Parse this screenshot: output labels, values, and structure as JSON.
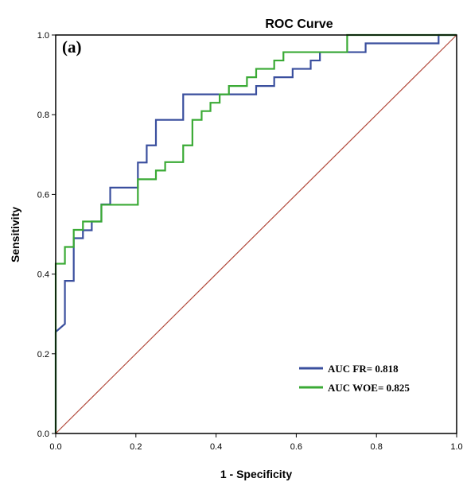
{
  "chart_data": {
    "type": "line",
    "title": "ROC Curve",
    "panel_label": "(a)",
    "xlabel": "1 - Specificity",
    "ylabel": "Sensitivity",
    "xlim": [
      0,
      1
    ],
    "ylim": [
      0,
      1
    ],
    "x_ticks": [
      "0.0",
      "0.2",
      "0.4",
      "0.6",
      "0.8",
      "1.0"
    ],
    "y_ticks": [
      "0.0",
      "0.2",
      "0.4",
      "0.6",
      "0.8",
      "1.0"
    ],
    "grid": false,
    "legend_position": "bottom-right",
    "series": [
      {
        "name": "AUC FR= 0.818",
        "color": "#3a4f9e",
        "points": [
          [
            0,
            0
          ],
          [
            0,
            0.255
          ],
          [
            0.023,
            0.275
          ],
          [
            0.023,
            0.383
          ],
          [
            0.045,
            0.383
          ],
          [
            0.045,
            0.49
          ],
          [
            0.068,
            0.49
          ],
          [
            0.068,
            0.51
          ],
          [
            0.09,
            0.51
          ],
          [
            0.09,
            0.532
          ],
          [
            0.114,
            0.532
          ],
          [
            0.114,
            0.575
          ],
          [
            0.136,
            0.575
          ],
          [
            0.136,
            0.617
          ],
          [
            0.205,
            0.617
          ],
          [
            0.205,
            0.68
          ],
          [
            0.227,
            0.68
          ],
          [
            0.227,
            0.723
          ],
          [
            0.25,
            0.723
          ],
          [
            0.25,
            0.787
          ],
          [
            0.318,
            0.787
          ],
          [
            0.318,
            0.851
          ],
          [
            0.5,
            0.851
          ],
          [
            0.5,
            0.872
          ],
          [
            0.545,
            0.872
          ],
          [
            0.545,
            0.894
          ],
          [
            0.591,
            0.894
          ],
          [
            0.591,
            0.915
          ],
          [
            0.636,
            0.915
          ],
          [
            0.636,
            0.936
          ],
          [
            0.659,
            0.936
          ],
          [
            0.659,
            0.957
          ],
          [
            0.773,
            0.957
          ],
          [
            0.773,
            0.979
          ],
          [
            0.955,
            0.979
          ],
          [
            0.955,
            1.0
          ],
          [
            1.0,
            1.0
          ]
        ]
      },
      {
        "name": "AUC WOE= 0.825",
        "color": "#3aaa35",
        "points": [
          [
            0,
            0
          ],
          [
            0,
            0.426
          ],
          [
            0.023,
            0.426
          ],
          [
            0.023,
            0.468
          ],
          [
            0.045,
            0.468
          ],
          [
            0.045,
            0.511
          ],
          [
            0.068,
            0.511
          ],
          [
            0.068,
            0.532
          ],
          [
            0.114,
            0.532
          ],
          [
            0.114,
            0.574
          ],
          [
            0.205,
            0.574
          ],
          [
            0.205,
            0.638
          ],
          [
            0.25,
            0.638
          ],
          [
            0.25,
            0.66
          ],
          [
            0.273,
            0.66
          ],
          [
            0.273,
            0.681
          ],
          [
            0.318,
            0.681
          ],
          [
            0.318,
            0.723
          ],
          [
            0.341,
            0.723
          ],
          [
            0.341,
            0.787
          ],
          [
            0.364,
            0.787
          ],
          [
            0.364,
            0.809
          ],
          [
            0.386,
            0.809
          ],
          [
            0.386,
            0.83
          ],
          [
            0.409,
            0.83
          ],
          [
            0.409,
            0.851
          ],
          [
            0.432,
            0.851
          ],
          [
            0.432,
            0.872
          ],
          [
            0.477,
            0.872
          ],
          [
            0.477,
            0.894
          ],
          [
            0.5,
            0.894
          ],
          [
            0.5,
            0.915
          ],
          [
            0.545,
            0.915
          ],
          [
            0.545,
            0.936
          ],
          [
            0.568,
            0.936
          ],
          [
            0.568,
            0.957
          ],
          [
            0.727,
            0.957
          ],
          [
            0.727,
            1.0
          ],
          [
            1.0,
            1.0
          ]
        ]
      },
      {
        "name": "",
        "color": "#b24a3c",
        "points": [
          [
            0,
            0
          ],
          [
            1,
            1
          ]
        ]
      }
    ]
  }
}
